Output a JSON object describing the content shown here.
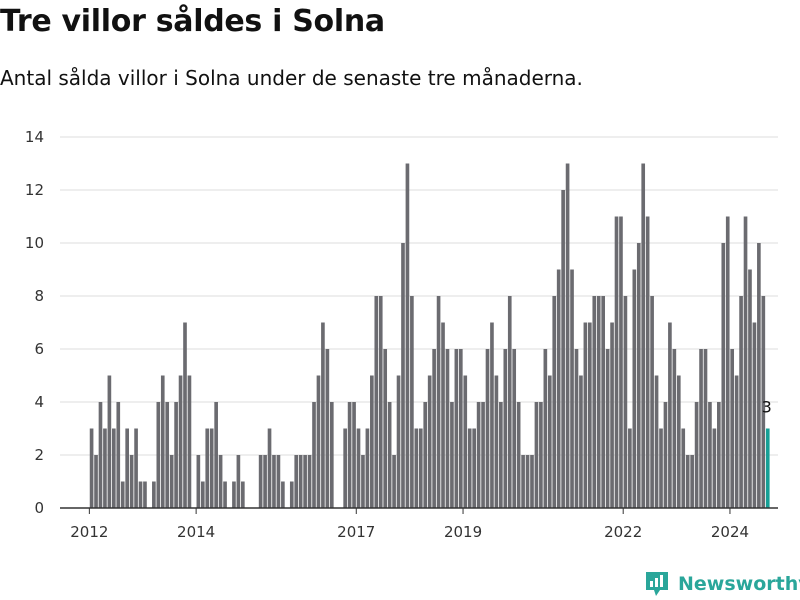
{
  "title": "Tre villor såldes i Solna",
  "subtitle": "Antal sålda villor i Solna under de senaste tre månaderna.",
  "brand": {
    "name": "Newsworthy",
    "color": "#2aa69a"
  },
  "colors": {
    "bar": "#6b6b70",
    "highlight": "#17a096",
    "grid": "#dddddd",
    "axis": "#333333"
  },
  "chart_data": {
    "type": "bar",
    "title": "Tre villor såldes i Solna",
    "ylabel": "",
    "xlabel": "",
    "ylim": [
      0,
      14
    ],
    "yticks": [
      0,
      2,
      4,
      6,
      8,
      10,
      12,
      14
    ],
    "x_start": {
      "year": 2012,
      "month": 1
    },
    "xlim_years": [
      2011.45,
      2024.9
    ],
    "xticks": [
      2012,
      2014,
      2017,
      2019,
      2022,
      2024
    ],
    "highlight_last": true,
    "annotation": {
      "text": "3",
      "target": "last"
    },
    "values": [
      3,
      2,
      4,
      3,
      5,
      3,
      4,
      1,
      3,
      2,
      3,
      1,
      1,
      0,
      1,
      4,
      5,
      4,
      2,
      4,
      5,
      7,
      5,
      0,
      2,
      1,
      3,
      3,
      4,
      2,
      1,
      0,
      1,
      2,
      1,
      0,
      0,
      0,
      2,
      2,
      3,
      2,
      2,
      1,
      0,
      1,
      2,
      2,
      2,
      2,
      4,
      5,
      7,
      6,
      4,
      0,
      0,
      3,
      4,
      4,
      3,
      2,
      3,
      5,
      8,
      8,
      6,
      4,
      2,
      5,
      10,
      13,
      8,
      3,
      3,
      4,
      5,
      6,
      8,
      7,
      6,
      4,
      6,
      6,
      5,
      3,
      3,
      4,
      4,
      6,
      7,
      5,
      4,
      6,
      8,
      6,
      4,
      2,
      2,
      2,
      4,
      4,
      6,
      5,
      8,
      9,
      12,
      13,
      9,
      6,
      5,
      7,
      7,
      8,
      8,
      8,
      6,
      7,
      11,
      11,
      8,
      3,
      9,
      10,
      13,
      11,
      8,
      5,
      3,
      4,
      7,
      6,
      5,
      3,
      2,
      2,
      4,
      6,
      6,
      4,
      3,
      4,
      10,
      11,
      6,
      5,
      8,
      11,
      9,
      7,
      10,
      8,
      3
    ]
  }
}
